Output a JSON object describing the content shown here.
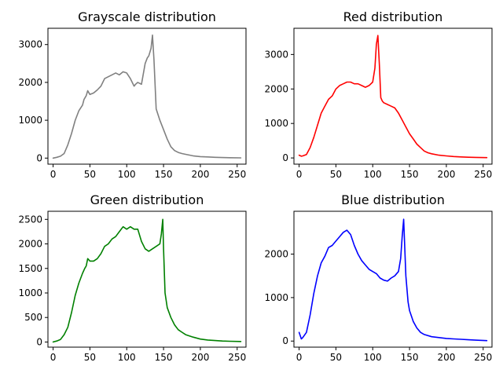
{
  "chart_data": [
    {
      "type": "line",
      "title": "Grayscale distribution",
      "color": "#808080",
      "xlim": [
        -7,
        262
      ],
      "ylim": [
        -160,
        3430
      ],
      "xticks": [
        0,
        50,
        100,
        150,
        200,
        250
      ],
      "yticks": [
        0,
        1000,
        2000,
        3000
      ],
      "series": [
        {
          "x": [
            0,
            5,
            10,
            15,
            20,
            25,
            30,
            35,
            40,
            42,
            45,
            47,
            50,
            55,
            60,
            65,
            70,
            75,
            80,
            85,
            90,
            95,
            100,
            105,
            110,
            112,
            115,
            120,
            125,
            128,
            130,
            133,
            135,
            137,
            140,
            145,
            150,
            155,
            160,
            165,
            170,
            175,
            180,
            190,
            200,
            210,
            220,
            230,
            240,
            255
          ],
          "y": [
            0,
            20,
            50,
            120,
            350,
            650,
            1000,
            1250,
            1400,
            1550,
            1650,
            1780,
            1680,
            1720,
            1800,
            1900,
            2100,
            2150,
            2200,
            2250,
            2200,
            2280,
            2250,
            2100,
            1900,
            1950,
            2000,
            1950,
            2500,
            2650,
            2700,
            2900,
            3250,
            2600,
            1300,
            1000,
            750,
            500,
            300,
            200,
            150,
            120,
            100,
            60,
            40,
            30,
            20,
            15,
            10,
            5
          ]
        }
      ]
    },
    {
      "type": "line",
      "title": "Red distribution",
      "color": "#ff0000",
      "xlim": [
        -7,
        262
      ],
      "ylim": [
        -180,
        3760
      ],
      "xticks": [
        0,
        50,
        100,
        150,
        200,
        250
      ],
      "yticks": [
        0,
        1000,
        2000,
        3000
      ],
      "series": [
        {
          "x": [
            0,
            3,
            5,
            10,
            15,
            20,
            25,
            30,
            35,
            40,
            45,
            50,
            55,
            60,
            65,
            70,
            75,
            80,
            85,
            90,
            95,
            100,
            103,
            105,
            107,
            109,
            111,
            113,
            115,
            120,
            125,
            130,
            135,
            140,
            145,
            150,
            155,
            160,
            165,
            170,
            175,
            180,
            190,
            200,
            210,
            220,
            230,
            240,
            255
          ],
          "y": [
            80,
            50,
            60,
            100,
            300,
            600,
            950,
            1300,
            1500,
            1700,
            1800,
            2000,
            2100,
            2150,
            2200,
            2200,
            2150,
            2150,
            2100,
            2050,
            2100,
            2200,
            2600,
            3300,
            3550,
            2700,
            1750,
            1650,
            1600,
            1550,
            1500,
            1450,
            1300,
            1100,
            900,
            700,
            550,
            400,
            300,
            200,
            150,
            120,
            80,
            60,
            40,
            30,
            20,
            15,
            10
          ]
        }
      ]
    },
    {
      "type": "line",
      "title": "Green distribution",
      "color": "#008000",
      "xlim": [
        -7,
        262
      ],
      "ylim": [
        -105,
        2665
      ],
      "xticks": [
        0,
        50,
        100,
        150,
        200,
        250
      ],
      "yticks": [
        0,
        500,
        1000,
        1500,
        2000,
        2500
      ],
      "series": [
        {
          "x": [
            0,
            5,
            10,
            15,
            20,
            25,
            30,
            35,
            40,
            43,
            45,
            47,
            50,
            55,
            60,
            65,
            70,
            75,
            80,
            85,
            90,
            95,
            100,
            105,
            110,
            115,
            120,
            125,
            130,
            135,
            140,
            145,
            147,
            149,
            150,
            152,
            155,
            160,
            165,
            170,
            175,
            180,
            190,
            200,
            210,
            220,
            230,
            240,
            255
          ],
          "y": [
            0,
            20,
            50,
            150,
            300,
            600,
            950,
            1200,
            1400,
            1500,
            1550,
            1700,
            1650,
            1650,
            1700,
            1800,
            1950,
            2000,
            2100,
            2150,
            2250,
            2350,
            2300,
            2350,
            2300,
            2300,
            2050,
            1900,
            1850,
            1900,
            1950,
            2000,
            2200,
            2500,
            1900,
            1000,
            700,
            500,
            350,
            250,
            200,
            150,
            100,
            60,
            40,
            30,
            20,
            15,
            10
          ]
        }
      ]
    },
    {
      "type": "line",
      "title": "Blue distribution",
      "color": "#0000ff",
      "xlim": [
        -7,
        262
      ],
      "ylim": [
        -140,
        2985
      ],
      "xticks": [
        0,
        50,
        100,
        150,
        200,
        250
      ],
      "yticks": [
        0,
        1000,
        2000
      ],
      "series": [
        {
          "x": [
            0,
            3,
            5,
            10,
            15,
            20,
            25,
            30,
            35,
            40,
            45,
            50,
            55,
            60,
            65,
            70,
            75,
            80,
            85,
            90,
            95,
            100,
            105,
            110,
            115,
            120,
            125,
            130,
            135,
            138,
            140,
            142,
            145,
            148,
            150,
            155,
            160,
            165,
            170,
            180,
            190,
            200,
            210,
            220,
            230,
            240,
            255
          ],
          "y": [
            200,
            50,
            80,
            200,
            600,
            1100,
            1500,
            1800,
            1950,
            2150,
            2200,
            2300,
            2400,
            2500,
            2550,
            2450,
            2200,
            2000,
            1850,
            1750,
            1650,
            1600,
            1550,
            1450,
            1400,
            1380,
            1450,
            1500,
            1600,
            1900,
            2400,
            2800,
            1500,
            900,
            700,
            450,
            300,
            200,
            150,
            100,
            80,
            60,
            50,
            40,
            30,
            20,
            10
          ]
        }
      ]
    }
  ]
}
